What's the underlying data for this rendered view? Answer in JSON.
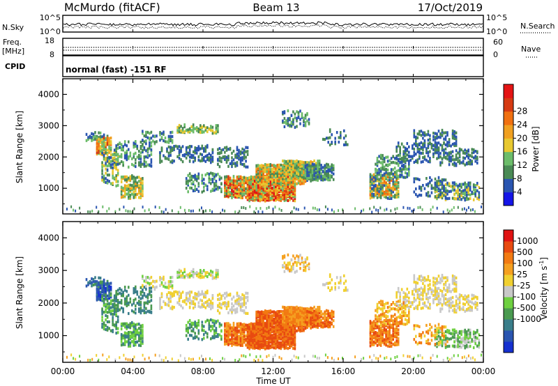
{
  "header": {
    "station": "McMurdo (fitACF)",
    "beam": "Beam 13",
    "date": "17/Oct/2019"
  },
  "noise_panel": {
    "left_label": "N.Sky",
    "right_label": "N.Search",
    "left_ticks": [
      "10^5",
      "10^0"
    ],
    "right_ticks": [
      "10^5",
      "10^0"
    ]
  },
  "freq_panel": {
    "left_label_1": "Freq.",
    "left_label_2": "[MHz]",
    "right_label": "Nave",
    "left_ticks": [
      "18",
      "8"
    ],
    "right_ticks": [
      "60",
      "0"
    ]
  },
  "cpid_panel": {
    "label": "CPID",
    "text": "normal (fast) -151 RF"
  },
  "time_axis": {
    "xlabel": "Time UT",
    "ticks": [
      "00:00",
      "04:00",
      "08:00",
      "12:00",
      "16:00",
      "20:00",
      "00:00"
    ]
  },
  "chart_data": [
    {
      "type": "heatmap",
      "name": "power",
      "ylabel": "Slant Range [km]",
      "x": "Time UT",
      "xlim": [
        0,
        24
      ],
      "ylim": [
        180,
        4500
      ],
      "y_ticks": [
        1000,
        2000,
        3000,
        4000
      ],
      "colorbar_label": "Power [dB]",
      "colorbar_ticks": [
        "4",
        "8",
        "12",
        "16",
        "20",
        "24",
        "28"
      ],
      "colorbar_colors": [
        "#1515e8",
        "#2a55b0",
        "#4a8a55",
        "#6cbc6a",
        "#e8c830",
        "#f0a020",
        "#f07010",
        "#d63a12",
        "#e41414"
      ]
    },
    {
      "type": "heatmap",
      "name": "velocity",
      "ylabel": "Slant Range [km]",
      "x": "Time UT",
      "xlim": [
        0,
        24
      ],
      "ylim": [
        180,
        4500
      ],
      "y_ticks": [
        1000,
        2000,
        3000,
        4000
      ],
      "colorbar_label": "Velocity [m s",
      "colorbar_label_sup": "-1",
      "colorbar_label_end": "]",
      "colorbar_ticks": [
        "1000",
        "500",
        "100",
        "25",
        "-25",
        "-100",
        "-500",
        "-1000"
      ],
      "colorbar_colors": [
        "#1530d0",
        "#2a55b0",
        "#3a7e8a",
        "#4a9a50",
        "#6ed040",
        "#c8c8c8",
        "#f0d030",
        "#f5a020",
        "#f27a12",
        "#e84a10",
        "#e01212"
      ]
    }
  ],
  "colors": {
    "axes": "#000000",
    "background": "#ffffff"
  }
}
